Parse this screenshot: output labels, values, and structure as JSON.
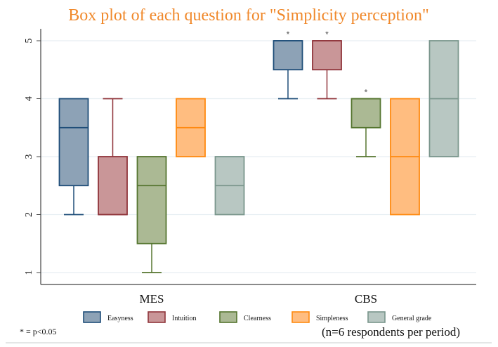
{
  "chart_data": {
    "type": "box",
    "title": "Box plot of each question for \"Simplicity perception\"",
    "xlabel": "",
    "ylabel": "",
    "ylim": [
      0.8,
      5.2
    ],
    "yticks": [
      1,
      2,
      3,
      4,
      5
    ],
    "ytick_labels": [
      "1",
      "2",
      "3",
      "4",
      "5"
    ],
    "grid": true,
    "groups": [
      "MES",
      "CBS"
    ],
    "legend": {
      "placement": "bottom",
      "entries": [
        "Easyness",
        "Intuition",
        "Clearness",
        "Simpleness",
        "General grade"
      ]
    },
    "series": [
      {
        "name": "Easyness",
        "fill": "#8DA2B6",
        "stroke": "#1F4E79",
        "boxes": [
          {
            "group": "MES",
            "q1": 2.5,
            "median": 3.5,
            "q3": 4,
            "whisker_low": 2,
            "whisker_high": 4,
            "significant": false
          },
          {
            "group": "CBS",
            "q1": 4.5,
            "median": 5,
            "q3": 5,
            "whisker_low": 4,
            "whisker_high": 5,
            "significant": true
          }
        ]
      },
      {
        "name": "Intuition",
        "fill": "#C99698",
        "stroke": "#90353B",
        "boxes": [
          {
            "group": "MES",
            "q1": 2,
            "median": 2,
            "q3": 3,
            "whisker_low": 2,
            "whisker_high": 4,
            "significant": false
          },
          {
            "group": "CBS",
            "q1": 4.5,
            "median": 5,
            "q3": 5,
            "whisker_low": 4,
            "whisker_high": 5,
            "significant": true
          }
        ]
      },
      {
        "name": "Clearness",
        "fill": "#ABB994",
        "stroke": "#55752F",
        "boxes": [
          {
            "group": "MES",
            "q1": 1.5,
            "median": 2.5,
            "q3": 3,
            "whisker_low": 1,
            "whisker_high": 3,
            "significant": false
          },
          {
            "group": "CBS",
            "q1": 3.5,
            "median": 4,
            "q3": 4,
            "whisker_low": 3,
            "whisker_high": 4,
            "significant": true
          }
        ]
      },
      {
        "name": "Simpleness",
        "fill": "#FFBD80",
        "stroke": "#FF8A10",
        "boxes": [
          {
            "group": "MES",
            "q1": 3,
            "median": 3.5,
            "q3": 4,
            "whisker_low": 3,
            "whisker_high": 4,
            "significant": false
          },
          {
            "group": "CBS",
            "q1": 2,
            "median": 3,
            "q3": 4,
            "whisker_low": 2,
            "whisker_high": 4,
            "significant": false
          }
        ]
      },
      {
        "name": "General grade",
        "fill": "#B8C7C2",
        "stroke": "#7A968C",
        "boxes": [
          {
            "group": "MES",
            "q1": 2,
            "median": 2.5,
            "q3": 3,
            "whisker_low": 2,
            "whisker_high": 3,
            "significant": false
          },
          {
            "group": "CBS",
            "q1": 3,
            "median": 4,
            "q3": 5,
            "whisker_low": 3,
            "whisker_high": 5,
            "significant": false
          }
        ]
      }
    ],
    "significance_marker": "*",
    "annotations": {
      "footnote": "* = p<0.05",
      "sample": "(n=6 respondents per period)"
    }
  }
}
